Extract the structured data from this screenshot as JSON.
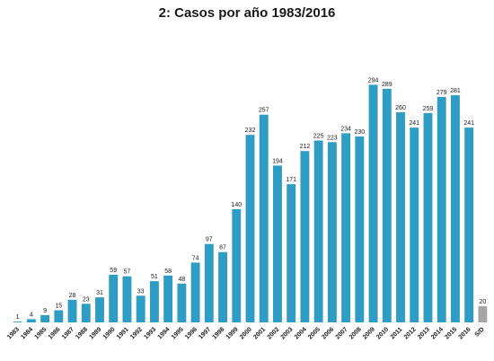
{
  "chart_data": {
    "type": "bar",
    "title": "2: Casos por año 1983/2016",
    "xlabel": "",
    "ylabel": "",
    "ylim": [
      0,
      300
    ],
    "grid": false,
    "legend": "none",
    "categories": [
      "1983",
      "1984",
      "1985",
      "1986",
      "1987",
      "1988",
      "1989",
      "1990",
      "1991",
      "1992",
      "1993",
      "1994",
      "1995",
      "1996",
      "1997",
      "1998",
      "1999",
      "2000",
      "2001",
      "2002",
      "2003",
      "2004",
      "2005",
      "2006",
      "2007",
      "2008",
      "2009",
      "2010",
      "2011",
      "2012",
      "2013",
      "2014",
      "2015",
      "2016",
      "S/D"
    ],
    "values": [
      1,
      4,
      9,
      15,
      28,
      23,
      31,
      59,
      57,
      33,
      51,
      58,
      48,
      74,
      97,
      87,
      140,
      232,
      257,
      194,
      171,
      212,
      225,
      223,
      234,
      230,
      294,
      289,
      260,
      241,
      259,
      279,
      281,
      241,
      20
    ],
    "colors": {
      "default": "#2E9CC3",
      "S/D": "#A6A6A6"
    }
  }
}
